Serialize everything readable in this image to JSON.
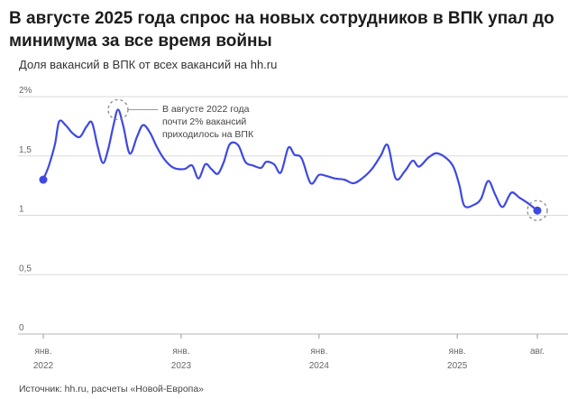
{
  "header": {
    "title": "В августе 2025 года спрос на новых сотрудников в ВПК упал до минимума за все время войны",
    "subtitle": "Доля вакансий в ВПК от всех вакансий на hh.ru"
  },
  "footer": {
    "source": "Источник: hh.ru, расчеты «Новой-Европа»"
  },
  "colors": {
    "line": "#3f49e0",
    "grid": "#dadada",
    "text": "#666666"
  },
  "chart_data": {
    "type": "line",
    "title": "В августе 2025 года спрос на новых сотрудников в ВПК упал до минимума за все время войны",
    "subtitle": "Доля вакансий в ВПК от всех вакансий на hh.ru",
    "ylim": [
      0,
      2
    ],
    "yticks": [
      {
        "value": 0,
        "label": "0"
      },
      {
        "value": 0.5,
        "label": "0,5"
      },
      {
        "value": 1,
        "label": "1"
      },
      {
        "value": 1.5,
        "label": "1,5"
      },
      {
        "value": 2,
        "label": "2%"
      }
    ],
    "xlim": [
      "2022-01-01",
      "2025-08-01"
    ],
    "xticks": [
      {
        "date": "2022-01-01",
        "line1": "янв.",
        "line2": "2022"
      },
      {
        "date": "2023-01-01",
        "line1": "янв.",
        "line2": "2023"
      },
      {
        "date": "2024-01-01",
        "line1": "янв.",
        "line2": "2024"
      },
      {
        "date": "2025-01-01",
        "line1": "янв.",
        "line2": "2025"
      },
      {
        "date": "2025-08-01",
        "line1": "авг.",
        "line2": ""
      }
    ],
    "grid": true,
    "series": [
      {
        "points": [
          [
            "2022-01-01",
            1.3
          ],
          [
            "2022-01-16",
            1.42
          ],
          [
            "2022-02-01",
            1.6
          ],
          [
            "2022-02-12",
            1.79
          ],
          [
            "2022-03-01",
            1.76
          ],
          [
            "2022-03-20",
            1.69
          ],
          [
            "2022-04-08",
            1.66
          ],
          [
            "2022-04-26",
            1.75
          ],
          [
            "2022-05-10",
            1.78
          ],
          [
            "2022-05-25",
            1.58
          ],
          [
            "2022-06-08",
            1.44
          ],
          [
            "2022-06-22",
            1.56
          ],
          [
            "2022-07-06",
            1.76
          ],
          [
            "2022-07-18",
            1.89
          ],
          [
            "2022-08-01",
            1.75
          ],
          [
            "2022-08-18",
            1.52
          ],
          [
            "2022-09-06",
            1.66
          ],
          [
            "2022-09-22",
            1.76
          ],
          [
            "2022-10-10",
            1.7
          ],
          [
            "2022-10-28",
            1.58
          ],
          [
            "2022-11-18",
            1.47
          ],
          [
            "2022-12-12",
            1.4
          ],
          [
            "2023-01-10",
            1.39
          ],
          [
            "2023-01-30",
            1.42
          ],
          [
            "2023-02-16",
            1.31
          ],
          [
            "2023-03-06",
            1.43
          ],
          [
            "2023-03-22",
            1.39
          ],
          [
            "2023-04-08",
            1.35
          ],
          [
            "2023-04-24",
            1.45
          ],
          [
            "2023-05-10",
            1.6
          ],
          [
            "2023-06-01",
            1.59
          ],
          [
            "2023-06-20",
            1.45
          ],
          [
            "2023-07-10",
            1.42
          ],
          [
            "2023-08-01",
            1.4
          ],
          [
            "2023-08-14",
            1.45
          ],
          [
            "2023-09-04",
            1.43
          ],
          [
            "2023-09-22",
            1.36
          ],
          [
            "2023-10-12",
            1.57
          ],
          [
            "2023-10-28",
            1.51
          ],
          [
            "2023-11-16",
            1.48
          ],
          [
            "2023-12-10",
            1.27
          ],
          [
            "2024-01-01",
            1.34
          ],
          [
            "2024-01-22",
            1.33
          ],
          [
            "2024-02-12",
            1.31
          ],
          [
            "2024-03-08",
            1.3
          ],
          [
            "2024-04-01",
            1.27
          ],
          [
            "2024-04-24",
            1.31
          ],
          [
            "2024-05-20",
            1.39
          ],
          [
            "2024-06-12",
            1.5
          ],
          [
            "2024-07-01",
            1.59
          ],
          [
            "2024-07-22",
            1.31
          ],
          [
            "2024-08-15",
            1.37
          ],
          [
            "2024-09-05",
            1.46
          ],
          [
            "2024-09-22",
            1.41
          ],
          [
            "2024-10-18",
            1.49
          ],
          [
            "2024-11-12",
            1.52
          ],
          [
            "2024-12-18",
            1.43
          ],
          [
            "2025-01-06",
            1.26
          ],
          [
            "2025-01-20",
            1.08
          ],
          [
            "2025-02-15",
            1.09
          ],
          [
            "2025-03-05",
            1.14
          ],
          [
            "2025-03-24",
            1.29
          ],
          [
            "2025-04-12",
            1.17
          ],
          [
            "2025-05-01",
            1.07
          ],
          [
            "2025-05-24",
            1.19
          ],
          [
            "2025-06-14",
            1.15
          ],
          [
            "2025-07-08",
            1.1
          ],
          [
            "2025-08-01",
            1.04
          ]
        ]
      }
    ],
    "highlights": [
      {
        "date": "2022-01-01",
        "value": 1.3,
        "style": "dot"
      },
      {
        "date": "2022-07-18",
        "value": 1.89,
        "style": "ring"
      },
      {
        "date": "2025-08-01",
        "value": 1.04,
        "style": "dot-ring"
      }
    ],
    "annotation": {
      "lines": [
        "В августе 2022 года",
        "почти 2% вакансий",
        "приходилось на ВПК"
      ]
    }
  }
}
